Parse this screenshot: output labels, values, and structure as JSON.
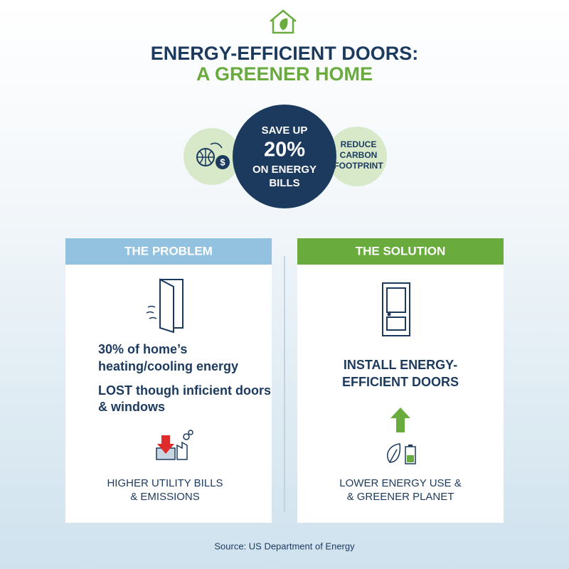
{
  "header": {
    "title_line1": "ENERGY-EFFICIENT DOORS:",
    "title_line2": "A GREENER HOME"
  },
  "highlights": {
    "center": [
      "SAVE UP",
      "20%",
      "ON ENERGY",
      "BILLS"
    ],
    "right": [
      "REDUCE",
      "CARBON",
      "FOOTPRINT"
    ]
  },
  "problem": {
    "heading": "THE PROBLEM",
    "statement": [
      "30% of home’s",
      "heating/cooling energy",
      "LOST though inficient doors",
      "& windows"
    ],
    "result": [
      "HIGHER UTILITY BILLS",
      "& EMISSIONS"
    ]
  },
  "solution": {
    "heading": "THE SOLUTION",
    "statement": [
      "INSTALL ENERGY-",
      "EFFICIENT DOORS"
    ],
    "result": [
      "LOWER ENERGY USE &",
      "& GREENER PLANET"
    ]
  },
  "source": "Source: US Department of Energy"
}
